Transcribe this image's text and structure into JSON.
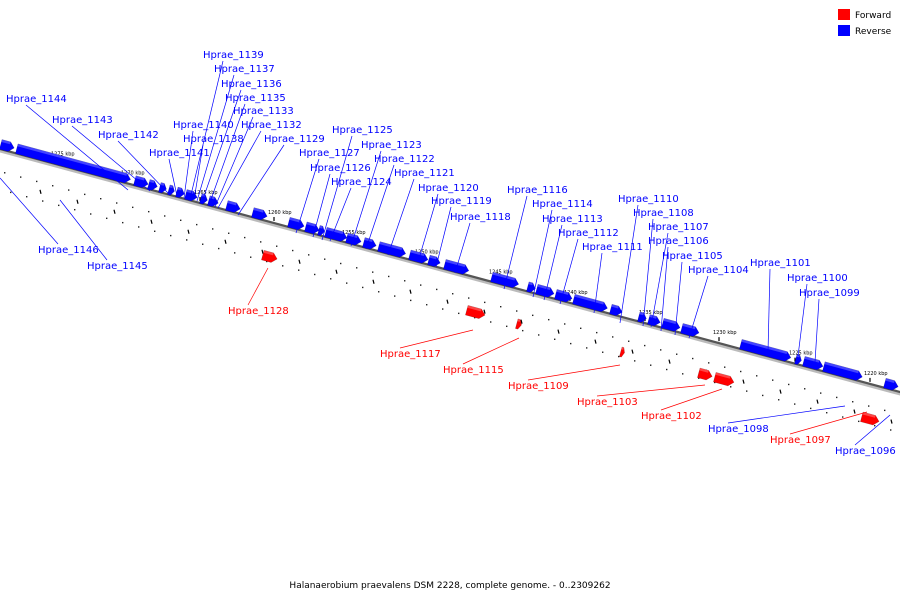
{
  "caption": "Halanaerobium praevalens DSM 2228, complete genome. - 0..2309262",
  "legend": [
    {
      "label": "Forward",
      "color": "#ff0000"
    },
    {
      "label": "Reverse",
      "color": "#0000ff"
    }
  ],
  "colors": {
    "forward": "#ff0000",
    "reverse": "#0000ff",
    "backbone": "#555555"
  },
  "ticks": [
    "1275 kbp",
    "1270 kbp",
    "1265 kbp",
    "1260 kbp",
    "1255 kbp",
    "1250 kbp",
    "1245 kbp",
    "1240 kbp",
    "1235 kbp",
    "1230 kbp",
    "1225 kbp",
    "1220 kbp"
  ],
  "genes": [
    {
      "name": "Hprae_1144",
      "strand": "reverse"
    },
    {
      "name": "Hprae_1143",
      "strand": "reverse"
    },
    {
      "name": "Hprae_1142",
      "strand": "reverse"
    },
    {
      "name": "Hprae_1141",
      "strand": "reverse"
    },
    {
      "name": "Hprae_1140",
      "strand": "reverse"
    },
    {
      "name": "Hprae_1139",
      "strand": "reverse"
    },
    {
      "name": "Hprae_1138",
      "strand": "reverse"
    },
    {
      "name": "Hprae_1137",
      "strand": "reverse"
    },
    {
      "name": "Hprae_1136",
      "strand": "reverse"
    },
    {
      "name": "Hprae_1135",
      "strand": "reverse"
    },
    {
      "name": "Hprae_1133",
      "strand": "reverse"
    },
    {
      "name": "Hprae_1132",
      "strand": "reverse"
    },
    {
      "name": "Hprae_1129",
      "strand": "reverse"
    },
    {
      "name": "Hprae_1127",
      "strand": "reverse"
    },
    {
      "name": "Hprae_1126",
      "strand": "reverse"
    },
    {
      "name": "Hprae_1125",
      "strand": "reverse"
    },
    {
      "name": "Hprae_1124",
      "strand": "reverse"
    },
    {
      "name": "Hprae_1123",
      "strand": "reverse"
    },
    {
      "name": "Hprae_1122",
      "strand": "reverse"
    },
    {
      "name": "Hprae_1121",
      "strand": "reverse"
    },
    {
      "name": "Hprae_1120",
      "strand": "reverse"
    },
    {
      "name": "Hprae_1119",
      "strand": "reverse"
    },
    {
      "name": "Hprae_1118",
      "strand": "reverse"
    },
    {
      "name": "Hprae_1116",
      "strand": "reverse"
    },
    {
      "name": "Hprae_1114",
      "strand": "reverse"
    },
    {
      "name": "Hprae_1113",
      "strand": "reverse"
    },
    {
      "name": "Hprae_1112",
      "strand": "reverse"
    },
    {
      "name": "Hprae_1111",
      "strand": "reverse"
    },
    {
      "name": "Hprae_1110",
      "strand": "reverse"
    },
    {
      "name": "Hprae_1108",
      "strand": "reverse"
    },
    {
      "name": "Hprae_1107",
      "strand": "reverse"
    },
    {
      "name": "Hprae_1106",
      "strand": "reverse"
    },
    {
      "name": "Hprae_1105",
      "strand": "reverse"
    },
    {
      "name": "Hprae_1104",
      "strand": "reverse"
    },
    {
      "name": "Hprae_1101",
      "strand": "reverse"
    },
    {
      "name": "Hprae_1100",
      "strand": "reverse"
    },
    {
      "name": "Hprae_1099",
      "strand": "reverse"
    },
    {
      "name": "Hprae_1146",
      "strand": "reverse"
    },
    {
      "name": "Hprae_1145",
      "strand": "reverse"
    },
    {
      "name": "Hprae_1098",
      "strand": "reverse"
    },
    {
      "name": "Hprae_1096",
      "strand": "reverse"
    },
    {
      "name": "Hprae_1128",
      "strand": "forward"
    },
    {
      "name": "Hprae_1117",
      "strand": "forward"
    },
    {
      "name": "Hprae_1115",
      "strand": "forward"
    },
    {
      "name": "Hprae_1109",
      "strand": "forward"
    },
    {
      "name": "Hprae_1103",
      "strand": "forward"
    },
    {
      "name": "Hprae_1102",
      "strand": "forward"
    },
    {
      "name": "Hprae_1097",
      "strand": "forward"
    }
  ]
}
